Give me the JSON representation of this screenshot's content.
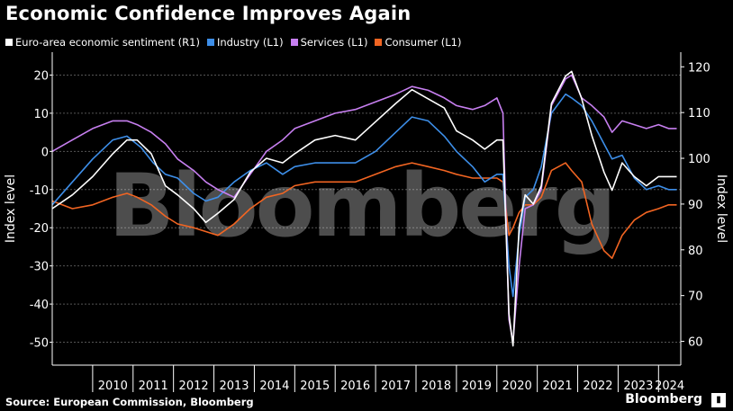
{
  "title": "Economic Confidence Improves Again",
  "source": "Source: European Commission, Bloomberg",
  "brand": "Bloomberg",
  "watermark": "Bloomberg",
  "colors": {
    "background": "#000000",
    "sentiment": "#ffffff",
    "industry": "#3d8ee8",
    "services": "#c77ff0",
    "consumer": "#f26522",
    "grid": "#555555"
  },
  "chart_data": {
    "type": "line",
    "title": "Economic Confidence Improves Again",
    "xlabel": "",
    "ylabel_left": "Index level",
    "ylabel_right": "Index level",
    "x_tick_labels": [
      "2010",
      "2011",
      "2012",
      "2013",
      "2014",
      "2015",
      "2016",
      "2017",
      "2018",
      "2019",
      "2020",
      "2021",
      "2022",
      "2023",
      "2024"
    ],
    "ylim_left": [
      -56,
      26
    ],
    "ylim_right": [
      54.8,
      123.2
    ],
    "left_ticks": [
      20,
      10,
      0,
      -10,
      -20,
      -30,
      -40,
      -50
    ],
    "right_ticks": [
      120,
      110,
      100,
      90,
      80,
      70,
      60
    ],
    "grid": "horizontal dashed (left axis)",
    "legend_position": "top-left",
    "series": [
      {
        "name": "Euro-area economic sentiment (R1)",
        "axis": "right",
        "color_key": "sentiment",
        "points": [
          [
            2009.0,
            89
          ],
          [
            2009.5,
            92
          ],
          [
            2010.0,
            96
          ],
          [
            2010.5,
            101
          ],
          [
            2010.85,
            104
          ],
          [
            2011.1,
            104
          ],
          [
            2011.45,
            101
          ],
          [
            2011.8,
            94
          ],
          [
            2012.1,
            92
          ],
          [
            2012.5,
            89
          ],
          [
            2012.8,
            86
          ],
          [
            2013.1,
            88
          ],
          [
            2013.5,
            91
          ],
          [
            2013.9,
            97
          ],
          [
            2014.3,
            100
          ],
          [
            2014.7,
            99
          ],
          [
            2015.0,
            101
          ],
          [
            2015.5,
            104
          ],
          [
            2016.0,
            105
          ],
          [
            2016.5,
            104
          ],
          [
            2017.0,
            108
          ],
          [
            2017.5,
            112
          ],
          [
            2017.9,
            115
          ],
          [
            2018.3,
            113
          ],
          [
            2018.7,
            111
          ],
          [
            2019.0,
            106
          ],
          [
            2019.4,
            104
          ],
          [
            2019.7,
            102
          ],
          [
            2020.0,
            104
          ],
          [
            2020.15,
            104
          ],
          [
            2020.3,
            66
          ],
          [
            2020.4,
            59
          ],
          [
            2020.55,
            85
          ],
          [
            2020.7,
            92
          ],
          [
            2020.9,
            90
          ],
          [
            2021.1,
            94
          ],
          [
            2021.35,
            112
          ],
          [
            2021.7,
            118
          ],
          [
            2021.85,
            119
          ],
          [
            2022.1,
            113
          ],
          [
            2022.35,
            105
          ],
          [
            2022.65,
            97
          ],
          [
            2022.85,
            93
          ],
          [
            2023.1,
            99
          ],
          [
            2023.4,
            96
          ],
          [
            2023.7,
            94
          ],
          [
            2024.0,
            96
          ],
          [
            2024.25,
            96
          ],
          [
            2024.45,
            96
          ]
        ]
      },
      {
        "name": "Industry (L1)",
        "axis": "left",
        "color_key": "industry",
        "points": [
          [
            2009.0,
            -14
          ],
          [
            2009.5,
            -8
          ],
          [
            2010.0,
            -2
          ],
          [
            2010.5,
            3
          ],
          [
            2010.85,
            4
          ],
          [
            2011.2,
            1
          ],
          [
            2011.5,
            -3
          ],
          [
            2011.8,
            -6
          ],
          [
            2012.1,
            -7
          ],
          [
            2012.5,
            -11
          ],
          [
            2012.8,
            -13
          ],
          [
            2013.1,
            -12
          ],
          [
            2013.5,
            -8
          ],
          [
            2013.9,
            -5
          ],
          [
            2014.3,
            -3
          ],
          [
            2014.7,
            -6
          ],
          [
            2015.0,
            -4
          ],
          [
            2015.5,
            -3
          ],
          [
            2016.0,
            -3
          ],
          [
            2016.5,
            -3
          ],
          [
            2017.0,
            0
          ],
          [
            2017.5,
            5
          ],
          [
            2017.9,
            9
          ],
          [
            2018.3,
            8
          ],
          [
            2018.7,
            4
          ],
          [
            2019.0,
            0
          ],
          [
            2019.4,
            -4
          ],
          [
            2019.7,
            -8
          ],
          [
            2020.0,
            -6
          ],
          [
            2020.15,
            -6
          ],
          [
            2020.3,
            -30
          ],
          [
            2020.4,
            -38
          ],
          [
            2020.55,
            -22
          ],
          [
            2020.7,
            -12
          ],
          [
            2020.9,
            -10
          ],
          [
            2021.1,
            -4
          ],
          [
            2021.35,
            10
          ],
          [
            2021.7,
            15
          ],
          [
            2021.85,
            14
          ],
          [
            2022.1,
            12
          ],
          [
            2022.35,
            8
          ],
          [
            2022.65,
            2
          ],
          [
            2022.85,
            -2
          ],
          [
            2023.1,
            -1
          ],
          [
            2023.4,
            -7
          ],
          [
            2023.7,
            -10
          ],
          [
            2024.0,
            -9
          ],
          [
            2024.25,
            -10
          ],
          [
            2024.45,
            -10
          ]
        ]
      },
      {
        "name": "Services (L1)",
        "axis": "left",
        "color_key": "services",
        "points": [
          [
            2009.0,
            0
          ],
          [
            2009.5,
            3
          ],
          [
            2010.0,
            6
          ],
          [
            2010.5,
            8
          ],
          [
            2010.85,
            8
          ],
          [
            2011.1,
            7
          ],
          [
            2011.45,
            5
          ],
          [
            2011.8,
            2
          ],
          [
            2012.1,
            -2
          ],
          [
            2012.5,
            -5
          ],
          [
            2012.8,
            -8
          ],
          [
            2013.1,
            -10
          ],
          [
            2013.5,
            -12
          ],
          [
            2013.9,
            -6
          ],
          [
            2014.3,
            0
          ],
          [
            2014.7,
            3
          ],
          [
            2015.0,
            6
          ],
          [
            2015.5,
            8
          ],
          [
            2016.0,
            10
          ],
          [
            2016.5,
            11
          ],
          [
            2017.0,
            13
          ],
          [
            2017.5,
            15
          ],
          [
            2017.9,
            17
          ],
          [
            2018.3,
            16
          ],
          [
            2018.7,
            14
          ],
          [
            2019.0,
            12
          ],
          [
            2019.4,
            11
          ],
          [
            2019.7,
            12
          ],
          [
            2020.0,
            14
          ],
          [
            2020.15,
            10
          ],
          [
            2020.3,
            -44
          ],
          [
            2020.4,
            -50
          ],
          [
            2020.55,
            -30
          ],
          [
            2020.7,
            -15
          ],
          [
            2020.9,
            -14
          ],
          [
            2021.1,
            -10
          ],
          [
            2021.35,
            12
          ],
          [
            2021.7,
            19
          ],
          [
            2021.85,
            20
          ],
          [
            2022.1,
            14
          ],
          [
            2022.35,
            12
          ],
          [
            2022.65,
            9
          ],
          [
            2022.85,
            5
          ],
          [
            2023.1,
            8
          ],
          [
            2023.4,
            7
          ],
          [
            2023.7,
            6
          ],
          [
            2024.0,
            7
          ],
          [
            2024.25,
            6
          ],
          [
            2024.45,
            6
          ]
        ]
      },
      {
        "name": "Consumer (L1)",
        "axis": "left",
        "color_key": "consumer",
        "points": [
          [
            2009.0,
            -13
          ],
          [
            2009.5,
            -15
          ],
          [
            2010.0,
            -14
          ],
          [
            2010.5,
            -12
          ],
          [
            2010.85,
            -11
          ],
          [
            2011.1,
            -12
          ],
          [
            2011.45,
            -14
          ],
          [
            2011.8,
            -17
          ],
          [
            2012.1,
            -19
          ],
          [
            2012.5,
            -20
          ],
          [
            2012.8,
            -21
          ],
          [
            2013.1,
            -22
          ],
          [
            2013.5,
            -19
          ],
          [
            2013.9,
            -15
          ],
          [
            2014.3,
            -12
          ],
          [
            2014.7,
            -11
          ],
          [
            2015.0,
            -9
          ],
          [
            2015.5,
            -8
          ],
          [
            2016.0,
            -8
          ],
          [
            2016.5,
            -8
          ],
          [
            2017.0,
            -6
          ],
          [
            2017.5,
            -4
          ],
          [
            2017.9,
            -3
          ],
          [
            2018.3,
            -4
          ],
          [
            2018.7,
            -5
          ],
          [
            2019.0,
            -6
          ],
          [
            2019.4,
            -7
          ],
          [
            2019.7,
            -7
          ],
          [
            2020.0,
            -7
          ],
          [
            2020.15,
            -8
          ],
          [
            2020.3,
            -22
          ],
          [
            2020.4,
            -20
          ],
          [
            2020.55,
            -16
          ],
          [
            2020.7,
            -14
          ],
          [
            2020.9,
            -14
          ],
          [
            2021.1,
            -12
          ],
          [
            2021.35,
            -5
          ],
          [
            2021.7,
            -3
          ],
          [
            2021.85,
            -5
          ],
          [
            2022.1,
            -8
          ],
          [
            2022.35,
            -19
          ],
          [
            2022.65,
            -26
          ],
          [
            2022.85,
            -28
          ],
          [
            2023.1,
            -22
          ],
          [
            2023.4,
            -18
          ],
          [
            2023.7,
            -16
          ],
          [
            2024.0,
            -15
          ],
          [
            2024.25,
            -14
          ],
          [
            2024.45,
            -14
          ]
        ]
      }
    ]
  }
}
